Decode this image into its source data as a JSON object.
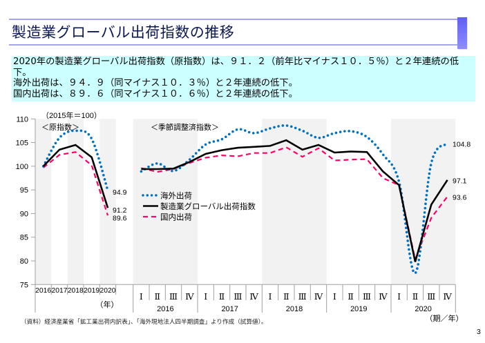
{
  "header": {
    "title": "製造業グローバル出荷指数の推移"
  },
  "summary": {
    "lines": [
      "2020年の製造業グローバル出荷指数（原指数）は、９１．２（前年比マイナス１０．５％）と２年連続の低下。",
      "海外出荷は、９４．９（同マイナス１０．３％）と２年連続の低下。",
      "国内出荷は、８９．６（同マイナス１０．６％）と２年連続の低下。"
    ]
  },
  "chart_data": {
    "type": "line",
    "title": "製造業グローバル出荷指数の推移",
    "unit_note": "（2015年＝100）",
    "ylabel": "",
    "ylim": [
      75,
      110
    ],
    "yticks": [
      75,
      80,
      85,
      90,
      95,
      100,
      105,
      110
    ],
    "grid": false,
    "legend_position": "center-left of quarterly panel",
    "legend": [
      {
        "key": "overseas",
        "label": "海外出荷",
        "color": "#0070c0",
        "style": "dotted"
      },
      {
        "key": "overall",
        "label": "製造業グローバル出荷指数",
        "color": "#000000",
        "style": "solid"
      },
      {
        "key": "domestic",
        "label": "国内出荷",
        "color": "#ff0066",
        "style": "dashed"
      }
    ],
    "annual": {
      "label": "＜原指数＞",
      "xlabel": "（年）",
      "categories": [
        "2016",
        "2017",
        "2018",
        "2019",
        "2020"
      ],
      "series": [
        {
          "key": "overseas",
          "name": "海外出荷",
          "values": [
            100.0,
            106.0,
            107.5,
            105.8,
            94.9
          ],
          "end_label": "94.9"
        },
        {
          "key": "overall",
          "name": "製造業グローバル出荷指数",
          "values": [
            100.0,
            103.5,
            104.5,
            101.9,
            91.2
          ],
          "end_label": "91.2"
        },
        {
          "key": "domestic",
          "name": "国内出荷",
          "values": [
            99.7,
            102.4,
            103.0,
            100.2,
            89.6
          ],
          "end_label": "89.6"
        }
      ]
    },
    "quarterly": {
      "label": "＜季節調整済指数＞",
      "xlabel": "（期／年）",
      "quarters": [
        "Ⅰ",
        "Ⅱ",
        "Ⅲ",
        "Ⅳ"
      ],
      "years": [
        "2016",
        "2017",
        "2018",
        "2019",
        "2020"
      ],
      "series": [
        {
          "key": "overseas",
          "name": "海外出荷",
          "values": [
            98.9,
            100.6,
            99.0,
            101.4,
            104.6,
            105.7,
            107.8,
            107.0,
            108.0,
            108.6,
            107.5,
            106.0,
            107.0,
            107.4,
            106.2,
            102.5,
            96.7,
            77.4,
            100.7,
            104.8
          ],
          "end_label": "104.8"
        },
        {
          "key": "overall",
          "name": "製造業グローバル出荷指数",
          "values": [
            99.4,
            99.4,
            99.5,
            100.9,
            102.6,
            103.4,
            103.9,
            104.1,
            104.3,
            105.5,
            103.5,
            104.5,
            102.9,
            103.1,
            103.0,
            98.9,
            96.0,
            79.8,
            91.9,
            97.1
          ],
          "end_label": "97.1"
        },
        {
          "key": "domestic",
          "name": "国内出荷",
          "values": [
            99.6,
            98.8,
            99.4,
            100.7,
            101.8,
            102.3,
            102.1,
            102.8,
            102.8,
            104.0,
            102.0,
            103.8,
            101.2,
            101.4,
            101.5,
            97.5,
            96.0,
            80.3,
            89.1,
            93.6
          ],
          "end_label": "93.6"
        }
      ]
    }
  },
  "footnote": "（資料）経済産業省「鉱工業出荷内訳表」、「海外現地法人四半期調査」より作成（試算値）。",
  "page_number": "3"
}
